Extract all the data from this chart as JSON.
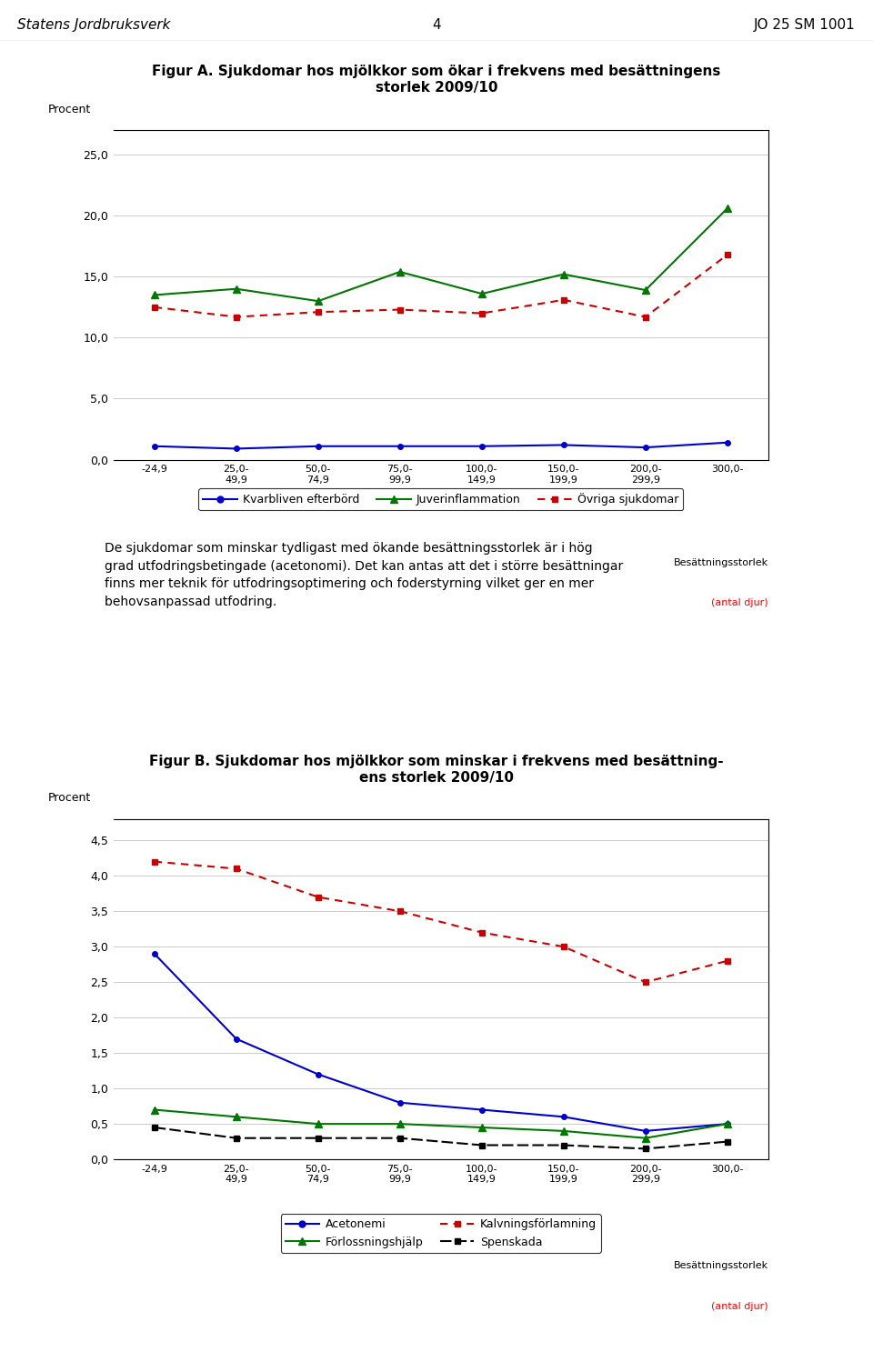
{
  "header_left": "Statens Jordbruksverk",
  "header_center": "4",
  "header_right": "JO 25 SM 1001",
  "figA_title": "Figur A. Sjukdomar hos mjölkkor som ökar i frekvens med besättningens\nstorlek 2009/10",
  "figB_title": "Figur B. Sjukdomar hos mjölkkor som minskar i frekvens med besättning-\nens storlek 2009/10",
  "x_labels": [
    "-24,9",
    "25,0-\n49,9",
    "50,0-\n74,9",
    "75,0-\n99,9",
    "100,0-\n149,9",
    "150,0-\n199,9",
    "200,0-\n299,9",
    "300,0-"
  ],
  "body_text": "De sjukdomar som minskar tydligast med ökande besättningsstorlek är i hög\ngrad utfodringsbetingade (acetonomi). Det kan antas att det i större besättningar\nfinns mer teknik för utfodringsoptimering och foderstyrning vilket ger en mer\nbehovsanpassad utfodring.",
  "chartA": {
    "ylabel": "Procent",
    "ylim": [
      0,
      27
    ],
    "yticks": [
      0.0,
      5.0,
      10.0,
      15.0,
      20.0,
      25.0
    ],
    "kvarbliven_efterbord": [
      1.1,
      0.9,
      1.1,
      1.1,
      1.1,
      1.2,
      1.0,
      1.4
    ],
    "juverinflammation": [
      13.5,
      14.0,
      13.0,
      15.4,
      13.6,
      15.2,
      13.9,
      20.6
    ],
    "ovriga_sjukdomar": [
      12.5,
      11.7,
      12.1,
      12.3,
      12.0,
      13.1,
      11.7,
      16.8
    ],
    "kvarbliven_color": "#0000CC",
    "juverinflammation_color": "#007700",
    "ovriga_color": "#CC0000",
    "legend_labels": [
      "Kvarbliven efterbörd",
      "Juverinflammation",
      "Övriga sjukdomar"
    ]
  },
  "chartB": {
    "ylabel": "Procent",
    "ylim": [
      0,
      4.8
    ],
    "yticks": [
      0.0,
      0.5,
      1.0,
      1.5,
      2.0,
      2.5,
      3.0,
      3.5,
      4.0,
      4.5
    ],
    "acetonemi": [
      2.9,
      1.7,
      1.2,
      0.8,
      0.7,
      0.6,
      0.4,
      0.5
    ],
    "forlossningshjalp": [
      0.7,
      0.6,
      0.5,
      0.5,
      0.45,
      0.4,
      0.3,
      0.5
    ],
    "kalvningsforlamning": [
      4.2,
      4.1,
      3.7,
      3.5,
      3.2,
      3.0,
      2.5,
      2.8
    ],
    "spenskada": [
      0.45,
      0.3,
      0.3,
      0.3,
      0.2,
      0.2,
      0.15,
      0.25
    ],
    "acetonemi_color": "#0000CC",
    "forlossningshjalp_color": "#007700",
    "kalvningsforlamning_color": "#CC0000",
    "spenskada_color": "#000000",
    "legend_labels": [
      "Acetonemi",
      "Förlossningshjälp",
      "Kalvningsförlamning",
      "Spenskada"
    ]
  },
  "xlabel_black": "Besättningsstorlek",
  "xlabel_red": "(antal djur)"
}
